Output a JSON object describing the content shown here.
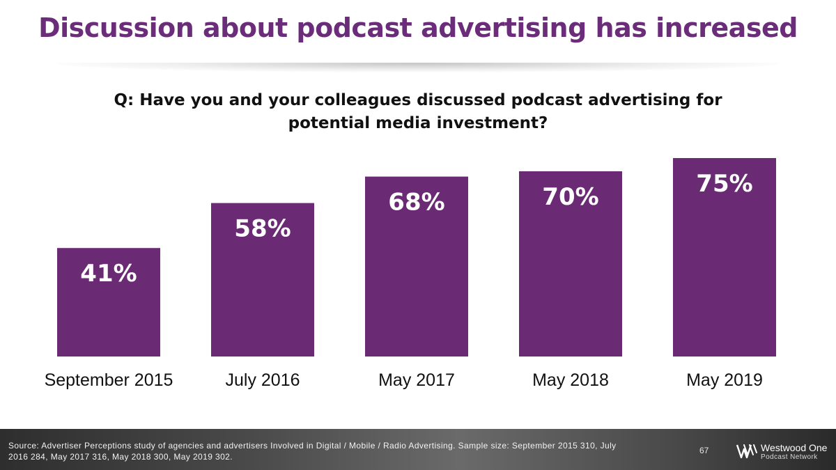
{
  "slide": {
    "title": "Discussion about podcast advertising has increased",
    "question": "Q: Have you and your colleagues discussed podcast advertising for potential media investment?"
  },
  "chart_data": {
    "type": "bar",
    "categories": [
      "September 2015",
      "July 2016",
      "May 2017",
      "May 2018",
      "May 2019"
    ],
    "values": [
      41,
      58,
      68,
      70,
      75
    ],
    "value_labels": [
      "41%",
      "58%",
      "68%",
      "70%",
      "75%"
    ],
    "unit": "%",
    "title": "",
    "xlabel": "",
    "ylabel": "",
    "ylim": [
      0,
      100
    ],
    "grid": false,
    "legend": "none",
    "bar_color": "#6b2a74",
    "label_color": "#ffffff"
  },
  "footer": {
    "source": "Source: Advertiser Perceptions study of agencies and advertisers Involved in Digital / Mobile / Radio Advertising. Sample size: September 2015 310, July 2016 284, May 2017 316, May 2018 300, May 2019 302.",
    "page_number": "67",
    "brand": "Westwood One",
    "brand_sub": "Podcast Network",
    "logo_icon": "westwood-one-w-logo"
  }
}
